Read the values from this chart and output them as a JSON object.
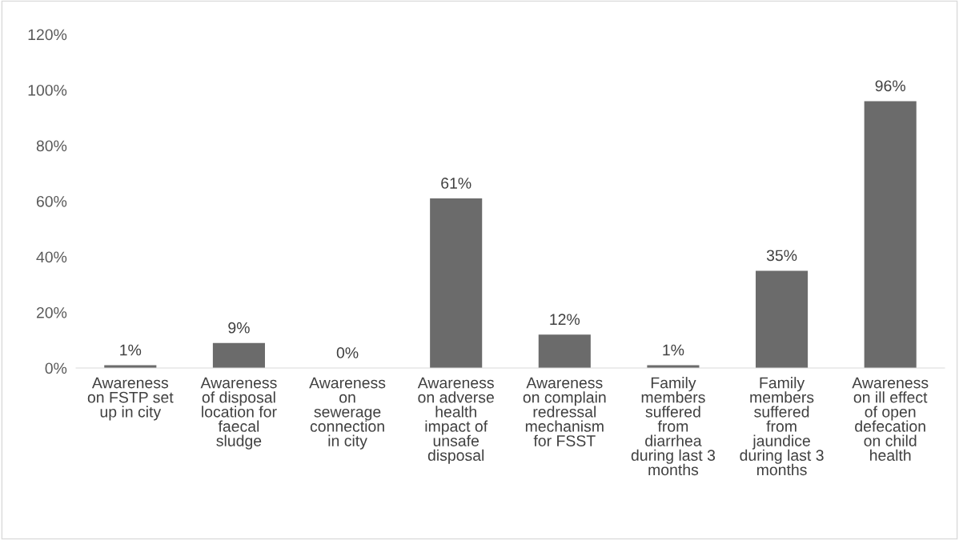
{
  "chart_data": {
    "type": "bar",
    "categories": [
      "Awareness\non FSTP set\nup in city",
      "Awareness\nof disposal\nlocation for\nfaecal\nsludge",
      "Awareness\non\nsewerage\nconnection\nin city",
      "Awareness\non adverse\nhealth\nimpact of\nunsafe\ndisposal",
      "Awareness\non complain\nredressal\nmechanism\nfor FSST",
      "Family\nmembers\nsuffered\nfrom\ndiarrhea\nduring last 3\nmonths",
      "Family\nmembers\nsuffered\nfrom\njaundice\nduring last 3\nmonths",
      "Awareness\non ill effect\nof open\ndefecation\non child\nhealth"
    ],
    "values": [
      1,
      9,
      0,
      61,
      12,
      1,
      35,
      96
    ],
    "value_labels": [
      "1%",
      "9%",
      "0%",
      "61%",
      "12%",
      "1%",
      "35%",
      "96%"
    ],
    "color": "#6b6b6b",
    "ylim": [
      0,
      120
    ],
    "yticks": [
      {
        "value": 0,
        "label": "0%"
      },
      {
        "value": 20,
        "label": "20%"
      },
      {
        "value": 40,
        "label": "40%"
      },
      {
        "value": 60,
        "label": "60%"
      },
      {
        "value": 80,
        "label": "80%"
      },
      {
        "value": 100,
        "label": "100%"
      },
      {
        "value": 120,
        "label": "120%"
      }
    ],
    "grid": false
  }
}
